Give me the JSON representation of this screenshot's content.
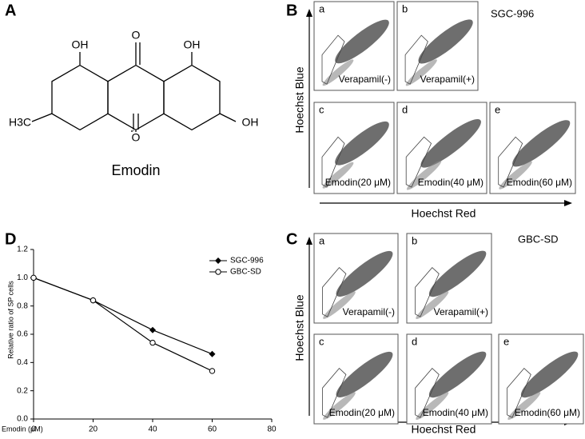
{
  "panel_A": {
    "label": "A",
    "atoms": [
      "OH",
      "O",
      "OH",
      "H3C",
      "O",
      "OH"
    ],
    "name": "Emodin"
  },
  "panel_B": {
    "label": "B",
    "cell_line": "SGC-996",
    "y_label": "Hoechst Blue",
    "x_label": "Hoechst Red",
    "plots": [
      {
        "letter": "a",
        "caption": "Verapamil(-)"
      },
      {
        "letter": "b",
        "caption": "Verapamil(+)"
      },
      {
        "letter": "c",
        "caption": "Emodin(20 μM)"
      },
      {
        "letter": "d",
        "caption": "Emodin(40 μM)"
      },
      {
        "letter": "e",
        "caption": "Emodin(60 μM)"
      }
    ]
  },
  "panel_C": {
    "label": "C",
    "cell_line": "GBC-SD",
    "y_label": "Hoechst Blue",
    "x_label": "Hoechst Red",
    "plots": [
      {
        "letter": "a",
        "caption": "Verapamil(-)"
      },
      {
        "letter": "b",
        "caption": "Verapamil(+)"
      },
      {
        "letter": "c",
        "caption": "Emodin(20 μM)"
      },
      {
        "letter": "d",
        "caption": "Emodin(40 μM)"
      },
      {
        "letter": "e",
        "caption": "Emodin(60 μM)"
      }
    ]
  },
  "panel_D_label": "D",
  "chart_data": {
    "type": "line",
    "x_label": "Emodin (μM)",
    "y_label": "Relative ratio of SP cells",
    "x": [
      0,
      20,
      40,
      60
    ],
    "series": [
      {
        "name": "SGC-996",
        "color": "#000000",
        "marker": "filled-diamond",
        "values": [
          1.0,
          0.84,
          0.63,
          0.46
        ]
      },
      {
        "name": "GBC-SD",
        "color": "#000000",
        "marker": "open-circle",
        "values": [
          1.0,
          0.84,
          0.54,
          0.34
        ]
      }
    ],
    "xlim": [
      0,
      80
    ],
    "xticks": [
      0,
      20,
      40,
      60,
      80
    ],
    "ylim": [
      0,
      1.2
    ],
    "yticks": [
      {
        "value": 0,
        "label": "0.0"
      },
      0.2,
      0.4,
      0.6,
      0.8,
      {
        "value": 1,
        "label": "1.0"
      },
      1.2
    ],
    "legend": "upper-right"
  }
}
